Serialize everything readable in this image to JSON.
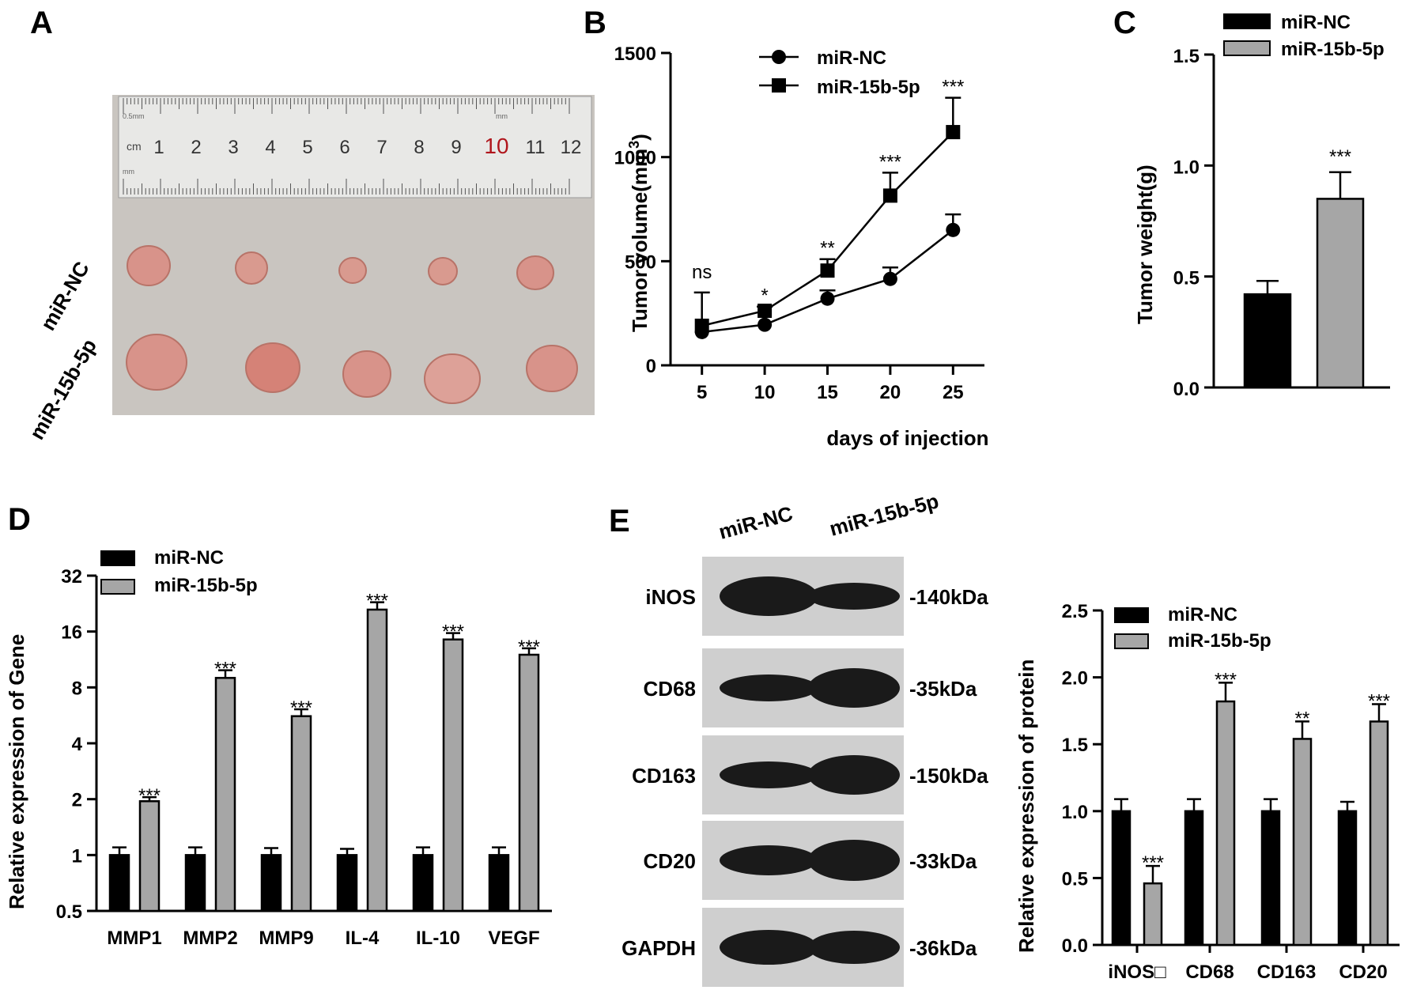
{
  "panel_labels": [
    "A",
    "B",
    "C",
    "D",
    "E"
  ],
  "panel_a": {
    "ruler_unit": "cm",
    "ruler_small_left": "0.5mm",
    "ruler_small_right": "mm",
    "ruler_small_bottom": "mm",
    "ruler_numbers": [
      "1",
      "2",
      "3",
      "4",
      "5",
      "6",
      "7",
      "8",
      "9",
      "10",
      "11",
      "12"
    ],
    "row_labels": [
      "miR-NC",
      "miR-15b-5p"
    ],
    "tumor_photo_desc": "tumor-samples-photo",
    "colors": {
      "photo_bg": "#c9c5c0",
      "tumor": "#d8938a",
      "ruler": "#e8e8e6"
    }
  },
  "chart_data": [
    {
      "id": "B",
      "type": "line",
      "x": [
        5,
        10,
        15,
        20,
        25
      ],
      "series": [
        {
          "name": "miR-NC",
          "marker": "circle",
          "values": [
            160,
            195,
            320,
            415,
            650
          ],
          "errors": [
            0,
            0,
            40,
            55,
            75
          ]
        },
        {
          "name": "miR-15b-5p",
          "marker": "square",
          "values": [
            190,
            262,
            455,
            815,
            1120
          ],
          "errors": [
            160,
            20,
            55,
            110,
            165
          ]
        }
      ],
      "significance": [
        "ns",
        "*",
        "**",
        "***",
        "***"
      ],
      "xlabel": "days of injection",
      "ylabel": "Tumor volume(mm3)",
      "ylabel_main": "Tumor volume(mm",
      "ylabel_sup": "3",
      "ylabel_end": ")",
      "ylim": [
        0,
        1500
      ],
      "yticks": [
        "0",
        "500",
        "1000",
        "1500"
      ],
      "xticks": [
        "5",
        "10",
        "15",
        "20",
        "25"
      ]
    },
    {
      "id": "C",
      "type": "bar",
      "categories": [
        "miR-NC",
        "miR-15b-5p"
      ],
      "values": [
        0.42,
        0.85
      ],
      "errors": [
        0.06,
        0.12
      ],
      "significance": [
        "",
        "***"
      ],
      "ylabel": "Tumor weight(g)",
      "ylim": [
        0,
        1.5
      ],
      "yticks": [
        "0.0",
        "0.5",
        "1.0",
        "1.5"
      ],
      "legend": [
        "miR-NC",
        "miR-15b-5p"
      ]
    },
    {
      "id": "D",
      "type": "bar",
      "yscale": "log2",
      "categories": [
        "MMP1",
        "MMP2",
        "MMP9",
        "IL-4",
        "IL-10",
        "VEGF"
      ],
      "series": [
        {
          "name": "miR-NC",
          "values": [
            1,
            1,
            1,
            1,
            1,
            1
          ],
          "errors": [
            0.1,
            0.1,
            0.09,
            0.08,
            0.1,
            0.1
          ]
        },
        {
          "name": "miR-15b-5p",
          "values": [
            1.95,
            9.0,
            5.6,
            21.0,
            14.5,
            12.0
          ],
          "errors": [
            0.1,
            0.9,
            0.5,
            2.0,
            1.2,
            1.0
          ]
        }
      ],
      "significance": [
        "***",
        "***",
        "***",
        "***",
        "***",
        "***"
      ],
      "ylabel": "Relative expression of Gene",
      "ylim": [
        0.5,
        32
      ],
      "yticks": [
        "0.5",
        "1",
        "2",
        "4",
        "8",
        "16",
        "32"
      ],
      "legend": [
        "miR-NC",
        "miR-15b-5p"
      ]
    },
    {
      "id": "E",
      "type": "bar",
      "categories": [
        "iNOS□",
        "CD68",
        "CD163",
        "CD20"
      ],
      "series": [
        {
          "name": "miR-NC",
          "values": [
            1.0,
            1.0,
            1.0,
            1.0
          ],
          "errors": [
            0.09,
            0.09,
            0.09,
            0.07
          ]
        },
        {
          "name": "miR-15b-5p",
          "values": [
            0.46,
            1.82,
            1.54,
            1.67
          ],
          "errors": [
            0.13,
            0.14,
            0.13,
            0.13
          ]
        }
      ],
      "significance": [
        "***",
        "***",
        "**",
        "***"
      ],
      "ylabel": "Relative expression of protein",
      "ylim": [
        0,
        2.5
      ],
      "yticks": [
        "0.0",
        "0.5",
        "1.0",
        "1.5",
        "2.0",
        "2.5"
      ],
      "legend": [
        "miR-NC",
        "miR-15b-5p"
      ]
    }
  ],
  "western_blot": {
    "lane_labels": [
      "miR-NC",
      "miR-15b-5p"
    ],
    "proteins": [
      "iNOS",
      "CD68",
      "CD163",
      "CD20",
      "GAPDH"
    ],
    "sizes": [
      "-140kDa",
      "-35kDa",
      "-150kDa",
      "-33kDa",
      "-36kDa"
    ],
    "band_intensity": [
      [
        0.95,
        0.55
      ],
      [
        0.55,
        0.95
      ],
      [
        0.55,
        0.95
      ],
      [
        0.65,
        1.0
      ],
      [
        0.8,
        0.75
      ]
    ],
    "colors": {
      "membrane": "#cfcfcf",
      "band": "#1a1a1a"
    }
  },
  "colors": {
    "nc": "#000000",
    "treat": "#a6a6a6",
    "axis": "#000000"
  }
}
